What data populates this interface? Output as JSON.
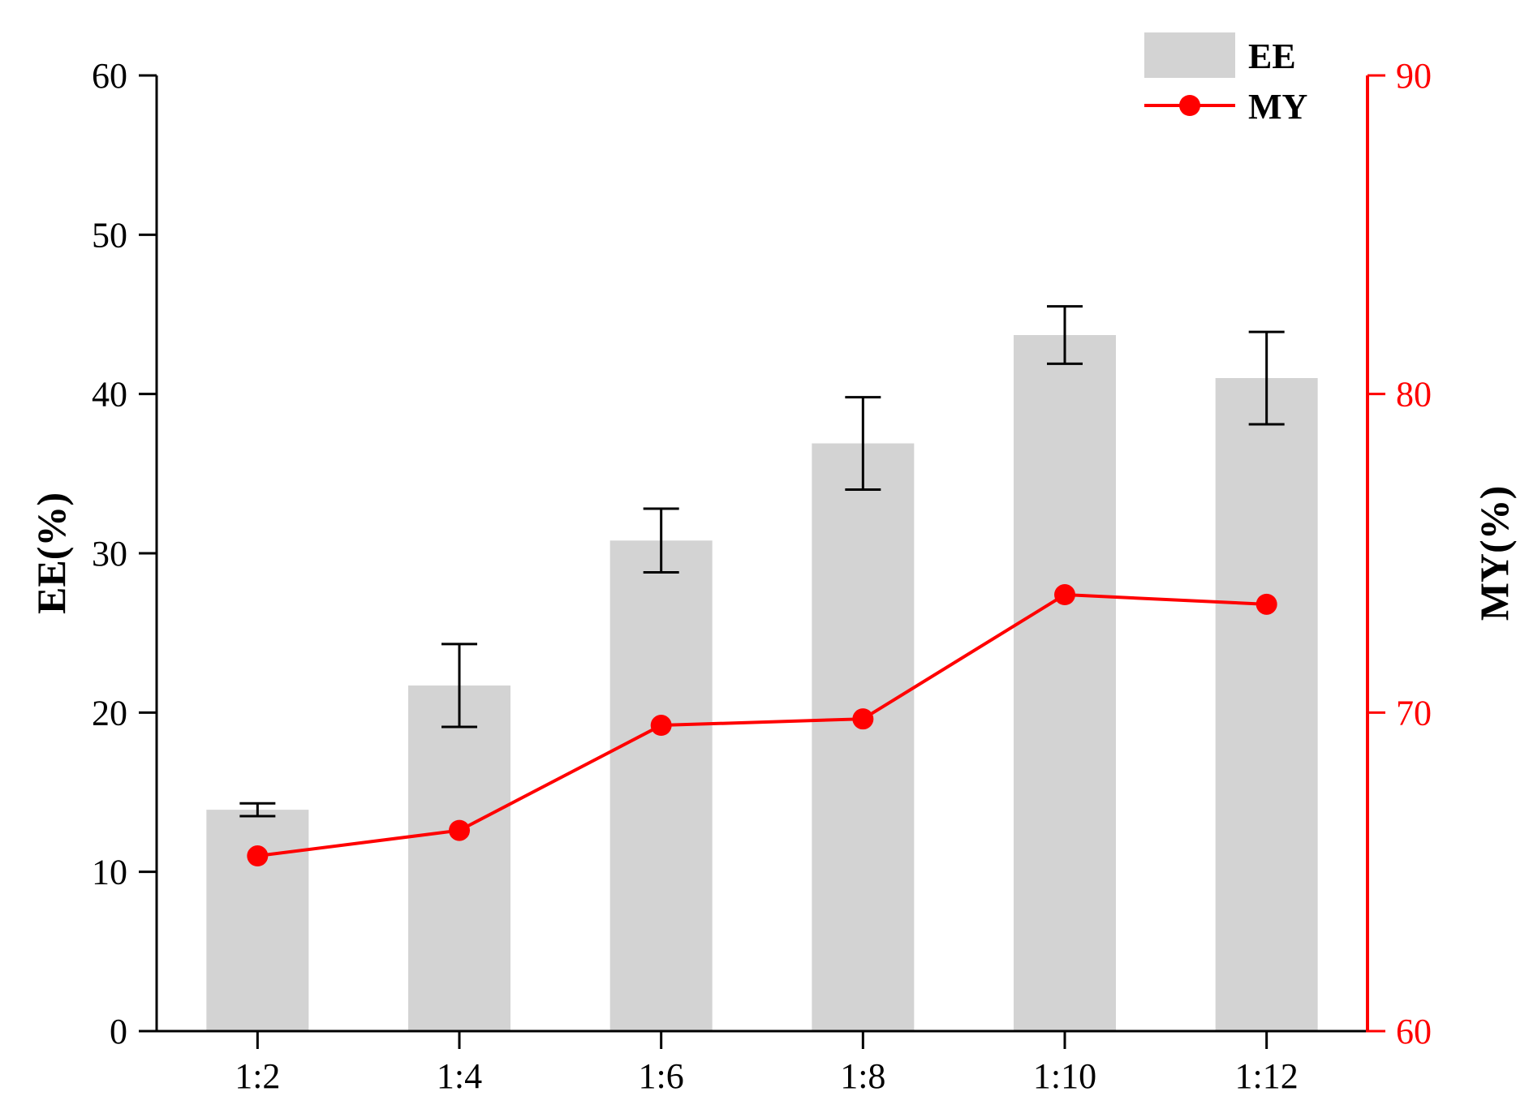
{
  "chart_data": {
    "type": "bar",
    "categories": [
      "1:2",
      "1:4",
      "1:6",
      "1:8",
      "1:10",
      "1:12"
    ],
    "series": [
      {
        "name": "EE",
        "type": "bar",
        "axis": "left",
        "values": [
          13.9,
          21.7,
          30.8,
          36.9,
          43.7,
          41.0
        ],
        "error": [
          0.4,
          2.6,
          2.0,
          2.9,
          1.8,
          2.9
        ]
      },
      {
        "name": "MY",
        "type": "line",
        "axis": "right",
        "values": [
          65.5,
          66.3,
          69.6,
          69.8,
          73.7,
          73.4
        ]
      }
    ],
    "ylabel": "EE(%)",
    "y2label": "MY(%)",
    "xlabel": "",
    "ylim": [
      0,
      60
    ],
    "y2lim": [
      60,
      90
    ],
    "yticks": [
      "0",
      "10",
      "20",
      "30",
      "40",
      "50",
      "60"
    ],
    "y2ticks": [
      "60",
      "70",
      "80",
      "90"
    ],
    "legend": "top-right",
    "grid": false,
    "colors": {
      "bar": "#d3d3d3",
      "line": "#ff0000",
      "axis": "#000000",
      "right_axis": "#ff0000"
    }
  }
}
